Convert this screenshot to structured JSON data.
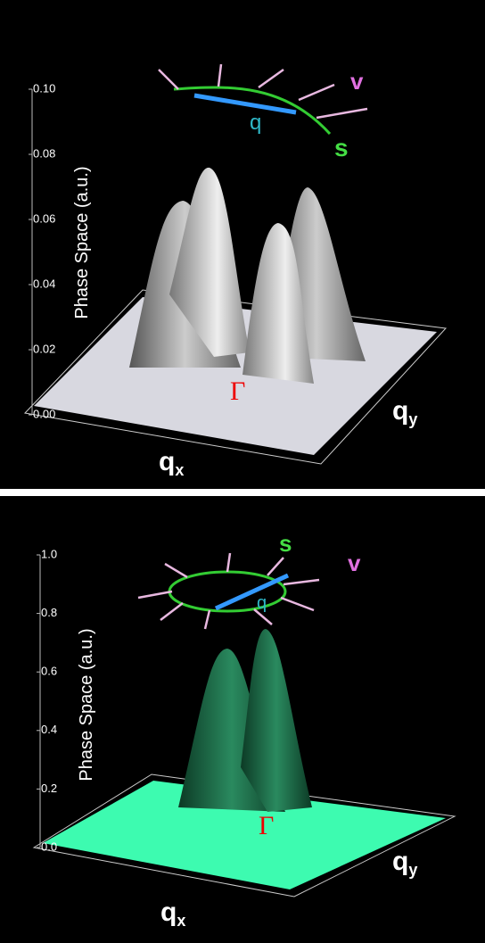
{
  "chart_data": [
    {
      "type": "surface",
      "z_label": "Phase Space (a.u.)",
      "x_label": "q",
      "x_label_sub": "x",
      "y_label": "q",
      "y_label_sub": "y",
      "point_label": "Γ",
      "inset_labels": {
        "q": "q",
        "v": "v",
        "s": "s"
      },
      "zlim": [
        0,
        0.1
      ],
      "zticks": [
        {
          "value": 0,
          "label": "0.00"
        },
        {
          "value": 0.02,
          "label": "0.02"
        },
        {
          "value": 0.04,
          "label": "0.04"
        },
        {
          "value": 0.06,
          "label": "0.06"
        },
        {
          "value": 0.08,
          "label": "0.08"
        },
        {
          "value": 0.1,
          "label": "0.10"
        }
      ],
      "color": "#d8d8e0"
    },
    {
      "type": "surface",
      "z_label": "Phase Space (a.u.)",
      "x_label": "q",
      "x_label_sub": "x",
      "y_label": "q",
      "y_label_sub": "y",
      "point_label": "Γ",
      "inset_labels": {
        "q": "q",
        "v": "v",
        "s": "s"
      },
      "zlim": [
        0,
        1
      ],
      "zticks": [
        {
          "value": 0,
          "label": "0.0"
        },
        0.2,
        0.4,
        0.6,
        0.8,
        {
          "value": 1,
          "label": "1.0"
        }
      ],
      "color": "#3dfbb0"
    }
  ]
}
